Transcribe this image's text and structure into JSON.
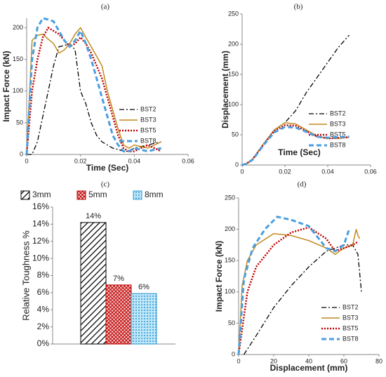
{
  "chart_data": [
    {
      "type": "line",
      "title": "(a)",
      "xlabel": "Time (Sec)",
      "ylabel": "Impact Force (kN)",
      "x": [
        0,
        0.002,
        0.004,
        0.006,
        0.008,
        0.01,
        0.012,
        0.014,
        0.016,
        0.018,
        0.02,
        0.022,
        0.024,
        0.026,
        0.028,
        0.03,
        0.032,
        0.034,
        0.036,
        0.038,
        0.04,
        0.045,
        0.05
      ],
      "series": [
        {
          "name": "BST2",
          "color": "#000000",
          "dash": "dashdot",
          "values": [
            0,
            0,
            20,
            60,
            100,
            140,
            170,
            172,
            175,
            165,
            100,
            80,
            50,
            30,
            20,
            15,
            10,
            8,
            5,
            5,
            10,
            15,
            20
          ]
        },
        {
          "name": "BST3",
          "color": "#c08a1e",
          "dash": "solid",
          "values": [
            0,
            180,
            188,
            190,
            182,
            175,
            160,
            165,
            175,
            190,
            200,
            185,
            170,
            155,
            140,
            100,
            70,
            40,
            15,
            10,
            15,
            10,
            20
          ]
        },
        {
          "name": "BST5",
          "color": "#c00000",
          "dash": "dotted",
          "values": [
            0,
            100,
            150,
            185,
            200,
            195,
            190,
            180,
            170,
            175,
            185,
            175,
            160,
            140,
            120,
            90,
            60,
            30,
            10,
            5,
            5,
            15,
            5
          ]
        },
        {
          "name": "BST8",
          "color": "#4a9ee0",
          "dash": "dashed",
          "values": [
            0,
            150,
            200,
            215,
            213,
            210,
            195,
            180,
            170,
            180,
            195,
            175,
            150,
            120,
            90,
            60,
            30,
            15,
            5,
            5,
            10,
            5,
            10
          ]
        }
      ],
      "xlim": [
        0,
        0.06
      ],
      "xticks": [
        0,
        0.02,
        0.04,
        0.06
      ],
      "ylim": [
        0,
        215
      ],
      "yticks": [
        0,
        50,
        100,
        150,
        200
      ],
      "legend": "right"
    },
    {
      "type": "line",
      "title": "(b)",
      "xlabel": "Time (Sec)",
      "ylabel": "Displacement (mm)",
      "x": [
        0,
        0.002,
        0.005,
        0.01,
        0.015,
        0.02,
        0.025,
        0.03,
        0.035,
        0.04,
        0.045,
        0.05
      ],
      "series": [
        {
          "name": "BST2",
          "color": "#000000",
          "dash": "dashdot",
          "values": [
            0,
            2,
            10,
            35,
            58,
            70,
            90,
            120,
            145,
            170,
            195,
            215
          ]
        },
        {
          "name": "BST3",
          "color": "#c08a1e",
          "dash": "solid",
          "values": [
            0,
            2,
            10,
            35,
            58,
            70,
            68,
            58,
            48,
            44,
            44,
            46
          ]
        },
        {
          "name": "BST5",
          "color": "#c00000",
          "dash": "dotted",
          "values": [
            0,
            2,
            10,
            34,
            56,
            66,
            65,
            56,
            47,
            44,
            45,
            46
          ]
        },
        {
          "name": "BST8",
          "color": "#4a9ee0",
          "dash": "dashed",
          "values": [
            0,
            2,
            9,
            33,
            54,
            63,
            62,
            55,
            47,
            45,
            46,
            47
          ]
        }
      ],
      "xlim": [
        0,
        0.06
      ],
      "xticks": [
        0,
        0.02,
        0.04,
        0.06
      ],
      "ylim": [
        0,
        250
      ],
      "yticks": [
        0,
        50,
        100,
        150,
        200,
        250
      ],
      "legend": "right"
    },
    {
      "type": "bar",
      "title": "(c)",
      "ylabel": "Relative Toughness %",
      "series": [
        {
          "name": "3mm",
          "color": "#000000",
          "pattern": "diagonal",
          "values": [
            14.2
          ],
          "value_labels": [
            "14%"
          ]
        },
        {
          "name": "5mm",
          "color": "#c00000",
          "pattern": "crosshatch",
          "values": [
            6.9
          ],
          "value_labels": [
            "7%"
          ]
        },
        {
          "name": "8mm",
          "color": "#2e9bd6",
          "pattern": "dots",
          "values": [
            5.9
          ],
          "value_labels": [
            "6%"
          ]
        }
      ],
      "ylim": [
        0,
        16
      ],
      "yticks": [
        {
          "value": 0,
          "label": "0%"
        },
        {
          "value": 2,
          "label": "2%"
        },
        {
          "value": 4,
          "label": "4%"
        },
        {
          "value": 6,
          "label": "6%"
        },
        {
          "value": 8,
          "label": "8%"
        },
        {
          "value": 10,
          "label": "10%"
        },
        {
          "value": 12,
          "label": "12%"
        },
        {
          "value": 14,
          "label": "14%"
        },
        {
          "value": 16,
          "label": "16%"
        }
      ],
      "legend": "top"
    },
    {
      "type": "line",
      "title": "(d)",
      "xlabel": "Displacement (mm)",
      "ylabel": "Impact Force (kN)",
      "series": [
        {
          "name": "BST2",
          "color": "#000000",
          "dash": "dashdot",
          "x": [
            3,
            10,
            20,
            30,
            40,
            50,
            60,
            65,
            68,
            70
          ],
          "values": [
            0,
            30,
            75,
            110,
            140,
            165,
            175,
            175,
            160,
            100
          ]
        },
        {
          "name": "BST3",
          "color": "#c08a1e",
          "dash": "solid",
          "x": [
            0,
            2,
            5,
            10,
            20,
            30,
            40,
            50,
            55,
            60,
            65,
            67,
            68,
            69
          ],
          "values": [
            0,
            110,
            150,
            175,
            193,
            190,
            182,
            170,
            160,
            170,
            175,
            200,
            190,
            185
          ]
        },
        {
          "name": "BST5",
          "color": "#c00000",
          "dash": "dotted",
          "x": [
            0,
            5,
            10,
            20,
            30,
            40,
            50,
            55,
            60,
            65,
            68
          ],
          "values": [
            0,
            100,
            140,
            175,
            195,
            203,
            185,
            165,
            170,
            175,
            180
          ]
        },
        {
          "name": "BST8",
          "color": "#4a9ee0",
          "dash": "dashed",
          "x": [
            0,
            3,
            8,
            15,
            22,
            30,
            40,
            50,
            55,
            60,
            63
          ],
          "values": [
            0,
            120,
            170,
            200,
            220,
            215,
            205,
            170,
            165,
            175,
            200
          ]
        }
      ],
      "xlim": [
        0,
        80
      ],
      "xticks": [
        0,
        20,
        40,
        60,
        80
      ],
      "ylim": [
        0,
        250
      ],
      "yticks": [
        0,
        50,
        100,
        150,
        200,
        250
      ],
      "legend": "lower right"
    }
  ]
}
